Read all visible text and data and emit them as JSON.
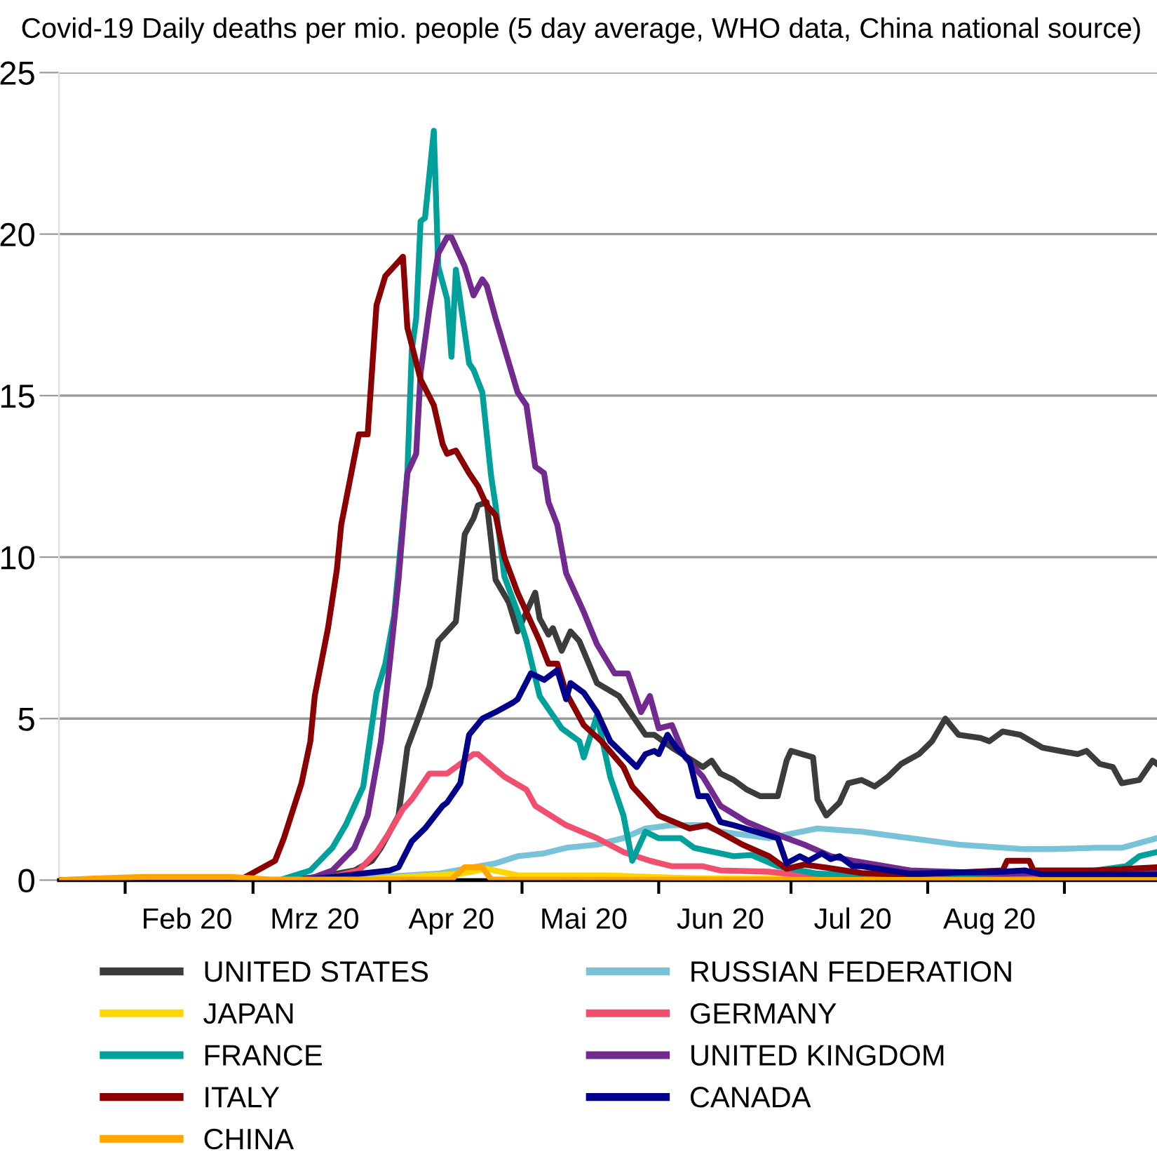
{
  "chart_data": {
    "type": "line",
    "title": "Covid-19 Daily deaths per mio. people (5 day average, WHO data, China national source)",
    "xlim": [
      "2020-01-17",
      "2020-09-22"
    ],
    "xticks": [
      {
        "value": "2020-02-01",
        "label": null
      },
      {
        "value": "2020-02-15",
        "label": "Feb 20"
      },
      {
        "value": "2020-03-01",
        "label": null
      },
      {
        "value": "2020-03-15",
        "label": "Mrz 20"
      },
      {
        "value": "2020-04-01",
        "label": null
      },
      {
        "value": "2020-04-15",
        "label": "Apr 20"
      },
      {
        "value": "2020-05-01",
        "label": null
      },
      {
        "value": "2020-05-15",
        "label": "Mai 20"
      },
      {
        "value": "2020-06-01",
        "label": null
      },
      {
        "value": "2020-06-15",
        "label": "Jun 20"
      },
      {
        "value": "2020-07-01",
        "label": null
      },
      {
        "value": "2020-07-15",
        "label": "Jul 20"
      },
      {
        "value": "2020-08-01",
        "label": null
      },
      {
        "value": "2020-08-15",
        "label": "Aug 20"
      },
      {
        "value": "2020-09-01",
        "label": null
      }
    ],
    "ylim": [
      0,
      25
    ],
    "yticks": [
      0,
      5,
      10,
      15,
      20,
      25
    ],
    "grid": "y",
    "legend": "bottom",
    "marker": "none",
    "line_style": "solid",
    "series": [
      {
        "name": "UNITED STATES",
        "color": "#3c3c3c",
        "x": [
          "2020-01-17",
          "2020-03-08",
          "2020-03-16",
          "2020-03-24",
          "2020-03-28",
          "2020-03-30",
          "2020-04-03",
          "2020-04-05",
          "2020-04-08",
          "2020-04-10",
          "2020-04-12",
          "2020-04-14",
          "2020-04-16",
          "2020-04-18",
          "2020-04-20",
          "2020-04-21",
          "2020-04-23",
          "2020-04-25",
          "2020-04-28",
          "2020-04-30",
          "2020-05-04",
          "2020-05-05",
          "2020-05-07",
          "2020-05-08",
          "2020-05-10",
          "2020-05-12",
          "2020-05-14",
          "2020-05-18",
          "2020-05-23",
          "2020-05-26",
          "2020-05-29",
          "2020-05-31",
          "2020-06-04",
          "2020-06-11",
          "2020-06-13",
          "2020-06-15",
          "2020-06-18",
          "2020-06-21",
          "2020-06-24",
          "2020-06-28",
          "2020-06-30",
          "2020-07-01",
          "2020-07-06",
          "2020-07-07",
          "2020-07-09",
          "2020-07-12",
          "2020-07-14",
          "2020-07-17",
          "2020-07-20",
          "2020-07-23",
          "2020-07-26",
          "2020-07-30",
          "2020-08-02",
          "2020-08-05",
          "2020-08-08",
          "2020-08-13",
          "2020-08-15",
          "2020-08-18",
          "2020-08-22",
          "2020-08-27",
          "2020-08-31",
          "2020-09-04",
          "2020-09-06",
          "2020-09-09",
          "2020-09-12",
          "2020-09-14",
          "2020-09-18",
          "2020-09-21",
          "2020-09-22"
        ],
        "values": [
          0,
          0,
          0.1,
          0.3,
          0.6,
          1.0,
          2.0,
          4.1,
          5.2,
          6.0,
          7.4,
          7.7,
          8.0,
          10.7,
          11.2,
          11.6,
          11.7,
          9.3,
          8.6,
          7.7,
          8.9,
          8.1,
          7.6,
          7.8,
          7.1,
          7.7,
          7.4,
          6.1,
          5.7,
          5.1,
          4.5,
          4.5,
          4.1,
          3.5,
          3.7,
          3.3,
          3.1,
          2.8,
          2.6,
          2.6,
          3.7,
          4.0,
          3.8,
          2.5,
          2.0,
          2.4,
          3.0,
          3.1,
          2.9,
          3.2,
          3.6,
          3.9,
          4.3,
          5.0,
          4.5,
          4.4,
          4.3,
          4.6,
          4.5,
          4.1,
          4.0,
          3.9,
          4.0,
          3.6,
          3.5,
          3.0,
          3.1,
          3.7,
          3.6
        ]
      },
      {
        "name": "RUSSIAN FEDERATION",
        "color": "#78c3d7",
        "x": [
          "2020-01-17",
          "2020-03-24",
          "2020-03-30",
          "2020-04-12",
          "2020-04-20",
          "2020-04-25",
          "2020-04-30",
          "2020-05-06",
          "2020-05-11",
          "2020-05-18",
          "2020-05-24",
          "2020-05-29",
          "2020-06-04",
          "2020-06-11",
          "2020-06-15",
          "2020-06-26",
          "2020-07-07",
          "2020-07-17",
          "2020-07-28",
          "2020-08-08",
          "2020-08-23",
          "2020-08-29",
          "2020-09-08",
          "2020-09-14",
          "2020-09-22"
        ],
        "values": [
          0,
          0,
          0.1,
          0.2,
          0.4,
          0.52,
          0.74,
          0.83,
          1.0,
          1.1,
          1.3,
          1.6,
          1.7,
          1.7,
          1.5,
          1.3,
          1.6,
          1.5,
          1.3,
          1.1,
          0.96,
          0.96,
          1.0,
          1.0,
          1.3
        ]
      },
      {
        "name": "JAPAN",
        "color": "#ffd700",
        "x": [
          "2020-03-24",
          "2020-04-17",
          "2020-04-23",
          "2020-04-30",
          "2020-05-20",
          "2020-06-10",
          "2020-09-22"
        ],
        "values": [
          0,
          0.2,
          0.35,
          0.15,
          0.15,
          0.05,
          0.02
        ]
      },
      {
        "name": "GERMANY",
        "color": "#f0506e",
        "x": [
          "2020-01-17",
          "2020-03-14",
          "2020-03-19",
          "2020-03-25",
          "2020-03-29",
          "2020-04-01",
          "2020-04-04",
          "2020-04-06",
          "2020-04-10",
          "2020-04-14",
          "2020-04-17",
          "2020-04-20",
          "2020-04-21",
          "2020-04-27",
          "2020-05-02",
          "2020-05-04",
          "2020-05-11",
          "2020-05-18",
          "2020-05-24",
          "2020-05-30",
          "2020-06-04",
          "2020-06-11",
          "2020-06-15",
          "2020-06-26",
          "2020-07-07",
          "2020-09-22"
        ],
        "values": [
          0,
          0,
          0.1,
          0.3,
          0.87,
          1.5,
          2.2,
          2.5,
          3.3,
          3.3,
          3.6,
          3.9,
          3.9,
          3.2,
          2.8,
          2.3,
          1.7,
          1.3,
          0.87,
          0.6,
          0.43,
          0.43,
          0.3,
          0.26,
          0.1,
          0.1
        ]
      },
      {
        "name": "FRANCE",
        "color": "#00a19a",
        "x": [
          "2020-01-17",
          "2020-03-07",
          "2020-03-14",
          "2020-03-19",
          "2020-03-22",
          "2020-03-26",
          "2020-03-29",
          "2020-03-31",
          "2020-04-02",
          "2020-04-05",
          "2020-04-06",
          "2020-04-07",
          "2020-04-08",
          "2020-04-09",
          "2020-04-11",
          "2020-04-12",
          "2020-04-14",
          "2020-04-15",
          "2020-04-16",
          "2020-04-19",
          "2020-04-20",
          "2020-04-22",
          "2020-04-24",
          "2020-04-25",
          "2020-04-27",
          "2020-04-30",
          "2020-05-02",
          "2020-05-05",
          "2020-05-10",
          "2020-05-14",
          "2020-05-15",
          "2020-05-18",
          "2020-05-21",
          "2020-05-24",
          "2020-05-26",
          "2020-05-29",
          "2020-06-01",
          "2020-06-06",
          "2020-06-09",
          "2020-06-18",
          "2020-06-22",
          "2020-06-28",
          "2020-07-07",
          "2020-07-28",
          "2020-09-08",
          "2020-09-15",
          "2020-09-18",
          "2020-09-22"
        ],
        "values": [
          0,
          0,
          0.3,
          1.0,
          1.7,
          2.9,
          5.8,
          6.7,
          8.2,
          12.6,
          16.4,
          17.4,
          20.4,
          20.5,
          23.2,
          19.0,
          18.0,
          16.2,
          18.9,
          16.0,
          15.8,
          15.1,
          12.5,
          11.6,
          9.4,
          8.3,
          7.4,
          5.7,
          4.7,
          4.3,
          3.8,
          5.1,
          3.2,
          2.0,
          0.6,
          1.5,
          1.3,
          1.3,
          1.0,
          0.74,
          0.78,
          0.43,
          0.2,
          0.1,
          0.3,
          0.43,
          0.74,
          0.87
        ]
      },
      {
        "name": "UNITED KINGDOM",
        "color": "#722a8e",
        "x": [
          "2020-01-17",
          "2020-03-12",
          "2020-03-15",
          "2020-03-19",
          "2020-03-24",
          "2020-03-27",
          "2020-03-30",
          "2020-04-01",
          "2020-04-03",
          "2020-04-05",
          "2020-04-07",
          "2020-04-08",
          "2020-04-10",
          "2020-04-12",
          "2020-04-14",
          "2020-04-15",
          "2020-04-17",
          "2020-04-18",
          "2020-04-20",
          "2020-04-22",
          "2020-04-23",
          "2020-04-25",
          "2020-04-30",
          "2020-05-02",
          "2020-05-04",
          "2020-05-06",
          "2020-05-07",
          "2020-05-09",
          "2020-05-11",
          "2020-05-15",
          "2020-05-18",
          "2020-05-22",
          "2020-05-25",
          "2020-05-28",
          "2020-05-30",
          "2020-06-01",
          "2020-06-04",
          "2020-06-07",
          "2020-06-11",
          "2020-06-15",
          "2020-06-21",
          "2020-06-28",
          "2020-07-04",
          "2020-07-10",
          "2020-07-15",
          "2020-07-28",
          "2020-08-18",
          "2020-09-22"
        ],
        "values": [
          0,
          0,
          0.1,
          0.3,
          1.0,
          2.0,
          4.3,
          6.7,
          9.3,
          12.6,
          13.2,
          15.7,
          17.7,
          19.4,
          19.9,
          19.9,
          19.3,
          19.0,
          18.1,
          18.6,
          18.4,
          17.4,
          15.1,
          14.7,
          12.8,
          12.6,
          11.7,
          11.0,
          9.5,
          8.3,
          7.3,
          6.4,
          6.4,
          5.2,
          5.7,
          4.7,
          4.8,
          3.8,
          3.2,
          2.3,
          1.8,
          1.4,
          1.1,
          0.74,
          0.6,
          0.3,
          0.2,
          0.3
        ]
      },
      {
        "name": "ITALY",
        "color": "#8b0000",
        "x": [
          "2020-01-17",
          "2020-02-27",
          "2020-03-02",
          "2020-03-06",
          "2020-03-08",
          "2020-03-12",
          "2020-03-14",
          "2020-03-15",
          "2020-03-18",
          "2020-03-20",
          "2020-03-21",
          "2020-03-25",
          "2020-03-27",
          "2020-03-29",
          "2020-03-31",
          "2020-04-02",
          "2020-04-04",
          "2020-04-05",
          "2020-04-08",
          "2020-04-11",
          "2020-04-13",
          "2020-04-14",
          "2020-04-16",
          "2020-04-19",
          "2020-04-21",
          "2020-04-23",
          "2020-04-25",
          "2020-04-27",
          "2020-04-30",
          "2020-05-05",
          "2020-05-07",
          "2020-05-09",
          "2020-05-11",
          "2020-05-15",
          "2020-05-19",
          "2020-05-24",
          "2020-05-26",
          "2020-06-01",
          "2020-06-08",
          "2020-06-12",
          "2020-06-20",
          "2020-06-26",
          "2020-06-30",
          "2020-07-04",
          "2020-07-09",
          "2020-07-17",
          "2020-07-28",
          "2020-08-18",
          "2020-08-19",
          "2020-08-24",
          "2020-08-25",
          "2020-09-08",
          "2020-09-22"
        ],
        "values": [
          0,
          0,
          0.3,
          0.6,
          1.3,
          3.0,
          4.3,
          5.7,
          7.8,
          9.6,
          11.0,
          13.8,
          13.8,
          17.8,
          18.7,
          19.0,
          19.3,
          17.1,
          15.5,
          14.7,
          13.5,
          13.2,
          13.3,
          12.6,
          12.2,
          11.6,
          11.3,
          10.0,
          8.9,
          7.4,
          6.7,
          6.7,
          5.8,
          4.8,
          4.3,
          3.5,
          2.9,
          2.0,
          1.6,
          1.7,
          1.1,
          0.74,
          0.35,
          0.48,
          0.39,
          0.22,
          0.17,
          0.3,
          0.6,
          0.6,
          0.3,
          0.3,
          0.4
        ]
      },
      {
        "name": "CANADA",
        "color": "#00008b",
        "x": [
          "2020-01-17",
          "2020-03-12",
          "2020-03-19",
          "2020-04-01",
          "2020-04-03",
          "2020-04-06",
          "2020-04-09",
          "2020-04-13",
          "2020-04-14",
          "2020-04-17",
          "2020-04-19",
          "2020-04-22",
          "2020-04-25",
          "2020-04-29",
          "2020-04-30",
          "2020-05-03",
          "2020-05-06",
          "2020-05-09",
          "2020-05-11",
          "2020-05-12",
          "2020-05-15",
          "2020-05-18",
          "2020-05-21",
          "2020-05-24",
          "2020-05-27",
          "2020-05-29",
          "2020-05-31",
          "2020-06-01",
          "2020-06-03",
          "2020-06-05",
          "2020-06-08",
          "2020-06-10",
          "2020-06-12",
          "2020-06-15",
          "2020-06-18",
          "2020-06-23",
          "2020-06-28",
          "2020-06-30",
          "2020-07-03",
          "2020-07-05",
          "2020-07-08",
          "2020-07-10",
          "2020-07-12",
          "2020-07-15",
          "2020-07-17",
          "2020-07-28",
          "2020-08-18",
          "2020-08-23",
          "2020-08-27",
          "2020-09-22"
        ],
        "values": [
          0,
          0,
          0.1,
          0.3,
          0.4,
          1.2,
          1.6,
          2.3,
          2.4,
          3.0,
          4.5,
          5.0,
          5.2,
          5.5,
          5.6,
          6.4,
          6.2,
          6.5,
          5.6,
          6.1,
          5.8,
          5.2,
          4.3,
          3.9,
          3.5,
          3.9,
          4.0,
          3.9,
          4.5,
          4.1,
          3.7,
          2.6,
          2.6,
          1.8,
          1.7,
          1.5,
          1.3,
          0.52,
          0.74,
          0.6,
          0.83,
          0.65,
          0.74,
          0.43,
          0.43,
          0.2,
          0.26,
          0.3,
          0.17,
          0.17
        ]
      },
      {
        "name": "CHINA",
        "color": "#ffa500",
        "x": [
          "2020-01-17",
          "2020-01-25",
          "2020-02-05",
          "2020-02-25",
          "2020-03-05",
          "2020-04-15",
          "2020-04-18",
          "2020-04-22",
          "2020-04-24",
          "2020-09-22"
        ],
        "values": [
          0,
          0.05,
          0.1,
          0.1,
          0.02,
          0.02,
          0.4,
          0.4,
          0.02,
          0
        ]
      }
    ]
  }
}
